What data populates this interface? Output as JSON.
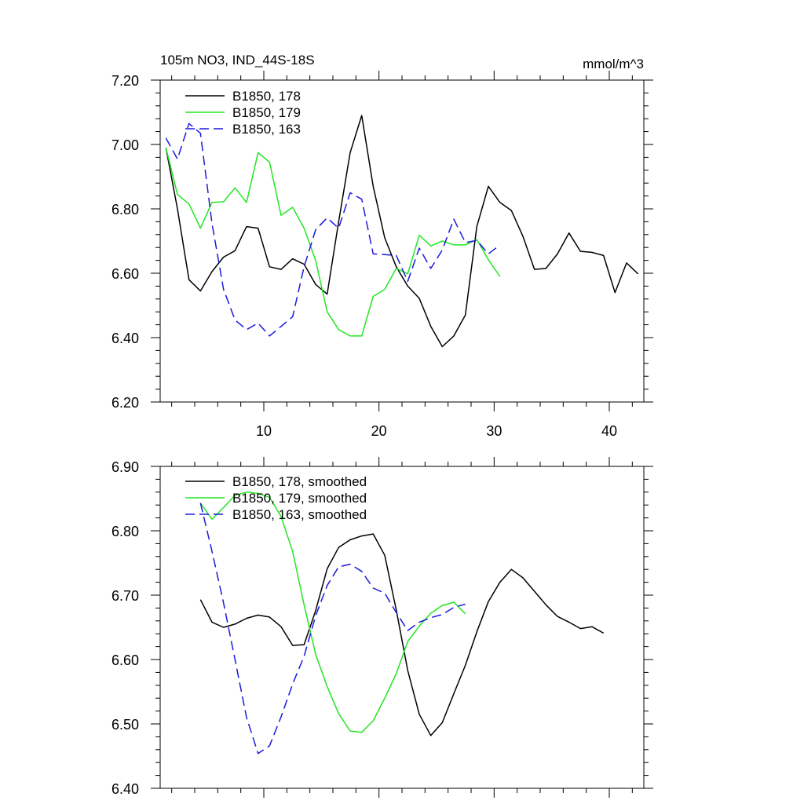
{
  "figure": {
    "title": "105m NO3, IND_44S-18S",
    "units": "mmol/m^3"
  },
  "chart_data": [
    {
      "type": "line",
      "xlim": [
        1,
        43
      ],
      "ylim": [
        6.2,
        7.2
      ],
      "xticks": [
        10,
        20,
        30,
        40
      ],
      "xtick_labels": [
        "10",
        "20",
        "30",
        "40"
      ],
      "yticks": [
        6.2,
        6.4,
        6.6,
        6.8,
        7.0,
        7.2
      ],
      "ytick_labels": [
        "6.20",
        "6.40",
        "6.60",
        "6.80",
        "7.00",
        "7.20"
      ],
      "legend_position": "top-left",
      "grid": false,
      "series": [
        {
          "name": "B1850, 178",
          "color": "#000000",
          "dash": "solid",
          "x": [
            1.5,
            2.5,
            3.5,
            4.5,
            5.5,
            6.5,
            7.5,
            8.5,
            9.5,
            10.5,
            11.5,
            12.5,
            13.5,
            14.5,
            15.5,
            16.5,
            17.5,
            18.5,
            19.5,
            20.5,
            21.5,
            22.5,
            23.5,
            24.5,
            25.5,
            26.5,
            27.5,
            28.5,
            29.5,
            30.5,
            31.5,
            32.5,
            33.5,
            34.5,
            35.5,
            36.5,
            37.5,
            38.5,
            39.5,
            40.5,
            41.5,
            42.5
          ],
          "y": [
            6.99,
            6.8,
            6.58,
            6.545,
            6.605,
            6.65,
            6.67,
            6.745,
            6.74,
            6.62,
            6.612,
            6.645,
            6.628,
            6.565,
            6.535,
            6.76,
            6.975,
            7.09,
            6.87,
            6.71,
            6.62,
            6.56,
            6.522,
            6.435,
            6.372,
            6.405,
            6.47,
            6.745,
            6.87,
            6.82,
            6.795,
            6.715,
            6.612,
            6.615,
            6.66,
            6.725,
            6.668,
            6.665,
            6.655,
            6.54,
            6.632,
            6.598
          ]
        },
        {
          "name": "B1850, 179",
          "color": "#22e622",
          "dash": "solid",
          "x": [
            1.5,
            2.5,
            3.5,
            4.5,
            5.5,
            6.5,
            7.5,
            8.5,
            9.5,
            10.5,
            11.5,
            12.5,
            13.5,
            14.5,
            15.5,
            16.5,
            17.5,
            18.5,
            19.5,
            20.5,
            21.5,
            22.5,
            23.5,
            24.5,
            25.5,
            26.5,
            27.5,
            28.5,
            29.5,
            30.5
          ],
          "y": [
            6.99,
            6.845,
            6.815,
            6.74,
            6.82,
            6.822,
            6.865,
            6.82,
            6.975,
            6.945,
            6.78,
            6.805,
            6.74,
            6.64,
            6.48,
            6.425,
            6.405,
            6.405,
            6.528,
            6.55,
            6.615,
            6.598,
            6.718,
            6.685,
            6.7,
            6.688,
            6.688,
            6.705,
            6.642,
            6.59
          ]
        },
        {
          "name": "B1850, 163",
          "color": "#1a1adc",
          "dash": "dashed",
          "x": [
            1.5,
            2.5,
            3.5,
            4.5,
            5.5,
            6.5,
            7.5,
            8.5,
            9.5,
            10.5,
            11.5,
            12.5,
            13.5,
            14.5,
            15.5,
            16.5,
            17.5,
            18.5,
            19.5,
            20.5,
            21.5,
            22.5,
            23.5,
            24.5,
            25.5,
            26.5,
            27.5,
            28.5,
            29.5,
            30.5
          ],
          "y": [
            7.02,
            6.955,
            7.065,
            7.035,
            6.755,
            6.55,
            6.455,
            6.425,
            6.445,
            6.405,
            6.435,
            6.465,
            6.62,
            6.735,
            6.772,
            6.74,
            6.85,
            6.83,
            6.66,
            6.658,
            6.655,
            6.575,
            6.678,
            6.615,
            6.672,
            6.768,
            6.695,
            6.702,
            6.66,
            6.688
          ]
        }
      ]
    },
    {
      "type": "line",
      "xlim": [
        1,
        43
      ],
      "ylim": [
        6.4,
        6.9
      ],
      "xticks": [
        10,
        20,
        30,
        40
      ],
      "xtick_labels": [],
      "yticks": [
        6.4,
        6.5,
        6.6,
        6.7,
        6.8,
        6.9
      ],
      "ytick_labels": [
        "6.40",
        "6.50",
        "6.60",
        "6.70",
        "6.80",
        "6.90"
      ],
      "legend_position": "top-left",
      "grid": false,
      "series": [
        {
          "name": "B1850, 178, smoothed",
          "color": "#000000",
          "dash": "solid",
          "x": [
            4.5,
            5.5,
            6.5,
            7.5,
            8.5,
            9.5,
            10.5,
            11.5,
            12.5,
            13.5,
            14.5,
            15.5,
            16.5,
            17.5,
            18.5,
            19.5,
            20.5,
            21.5,
            22.5,
            23.5,
            24.5,
            25.5,
            26.5,
            27.5,
            28.5,
            29.5,
            30.5,
            31.5,
            32.5,
            33.5,
            34.5,
            35.5,
            36.5,
            37.5,
            38.5,
            39.5
          ],
          "y": [
            6.693,
            6.658,
            6.65,
            6.655,
            6.664,
            6.669,
            6.666,
            6.651,
            6.622,
            6.623,
            6.676,
            6.741,
            6.774,
            6.786,
            6.792,
            6.795,
            6.762,
            6.677,
            6.583,
            6.515,
            6.482,
            6.502,
            6.547,
            6.591,
            6.643,
            6.69,
            6.72,
            6.74,
            6.727,
            6.706,
            6.685,
            6.667,
            6.658,
            6.648,
            6.651,
            6.641
          ]
        },
        {
          "name": "B1850, 179, smoothed",
          "color": "#22e622",
          "dash": "solid",
          "x": [
            4.5,
            5.5,
            6.5,
            7.5,
            8.5,
            9.5,
            10.5,
            11.5,
            12.5,
            13.5,
            14.5,
            15.5,
            16.5,
            17.5,
            18.5,
            19.5,
            20.5,
            21.5,
            22.5,
            23.5,
            24.5,
            25.5,
            26.5,
            27.5
          ],
          "y": [
            6.843,
            6.818,
            6.836,
            6.855,
            6.86,
            6.858,
            6.852,
            6.822,
            6.768,
            6.685,
            6.608,
            6.558,
            6.516,
            6.489,
            6.487,
            6.505,
            6.54,
            6.578,
            6.628,
            6.652,
            6.672,
            6.684,
            6.689,
            6.671
          ]
        },
        {
          "name": "B1850, 163, smoothed",
          "color": "#1a1adc",
          "dash": "dashed",
          "x": [
            4.5,
            5.5,
            6.5,
            7.5,
            8.5,
            9.5,
            10.5,
            11.5,
            12.5,
            13.5,
            14.5,
            15.5,
            16.5,
            17.5,
            18.5,
            19.5,
            20.5,
            21.5,
            22.5,
            23.5,
            24.5,
            25.5,
            26.5,
            27.5
          ],
          "y": [
            6.843,
            6.768,
            6.688,
            6.6,
            6.51,
            6.454,
            6.466,
            6.511,
            6.562,
            6.605,
            6.668,
            6.715,
            6.744,
            6.748,
            6.737,
            6.711,
            6.703,
            6.673,
            6.645,
            6.658,
            6.665,
            6.67,
            6.681,
            6.686
          ]
        }
      ]
    }
  ]
}
